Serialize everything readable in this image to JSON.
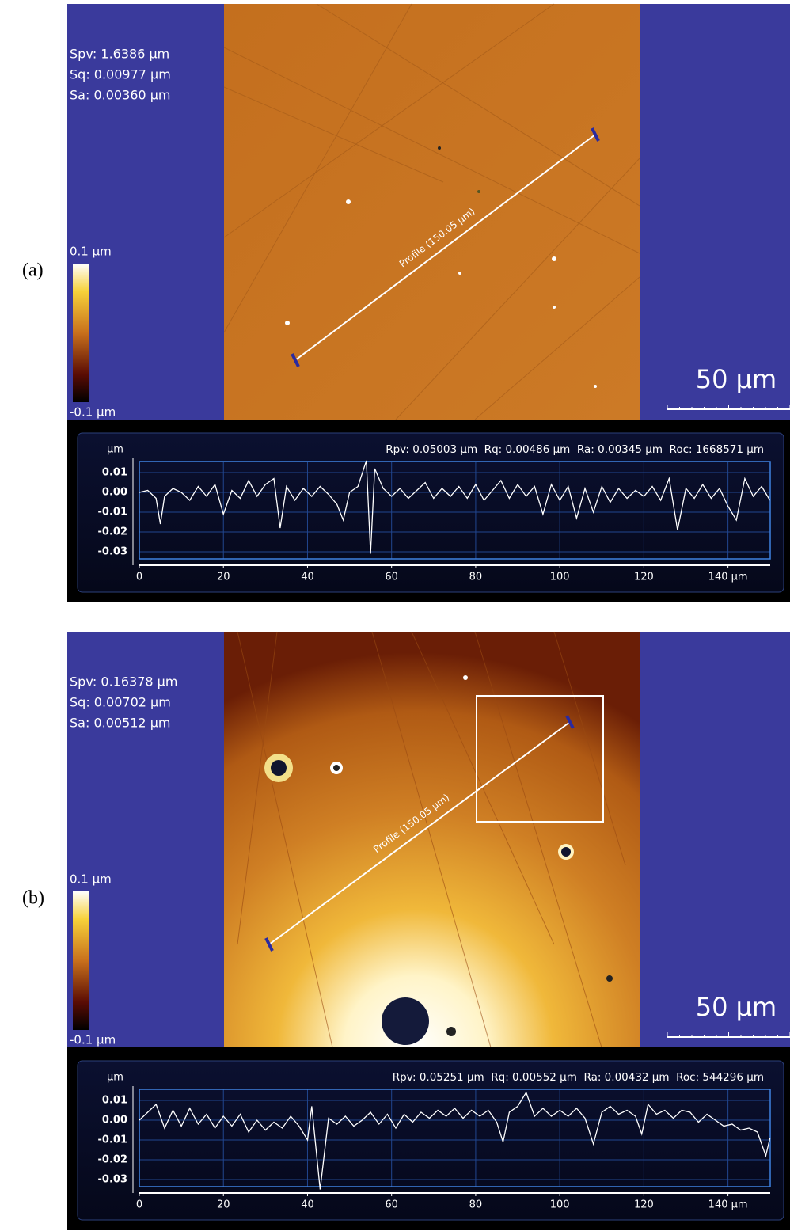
{
  "chart_data": [
    {
      "type": "line",
      "panel_label": "(a)",
      "stats": [
        "Spv: 1.6386 µm",
        "Sq: 0.00977 µm",
        "Sa: 0.00360 µm"
      ],
      "colorbar_max_label": "0.1 µm",
      "colorbar_min_label": "-0.1 µm",
      "scale_bar_label": "50 µm",
      "profile_label": "Profile (150.05 µm)",
      "y_unit": "µm",
      "profile_stats": "Rpv: 0.05003 µm  Rq: 0.00486 µm  Ra: 0.00345 µm  Roc: 1668571 µm",
      "color": "#ffffff",
      "grid": true,
      "xlim": [
        0,
        150.05
      ],
      "ylim": [
        -0.0336,
        0.0156
      ],
      "xticks": [
        0,
        20,
        40,
        60,
        80,
        100,
        120,
        {
          "value": 140,
          "label": "140 µm"
        }
      ],
      "yticks": [
        0.01,
        {
          "value": 0,
          "label": "0.00"
        },
        -0.01,
        -0.02,
        -0.03
      ],
      "x": [
        0,
        2,
        4,
        5,
        6,
        8,
        10,
        12,
        14,
        16,
        18,
        20,
        22,
        24,
        26,
        28,
        30,
        32,
        33.5,
        35,
        37,
        39,
        41,
        43,
        45,
        47,
        48.5,
        50,
        52,
        54,
        55,
        56,
        58,
        60,
        62,
        64,
        66,
        68,
        70,
        72,
        74,
        76,
        78,
        80,
        82,
        84,
        86,
        88,
        90,
        92,
        94,
        96,
        98,
        100,
        102,
        104,
        106,
        108,
        110,
        112,
        114,
        116,
        118,
        120,
        122,
        124,
        126,
        128,
        130,
        132,
        134,
        136,
        138,
        140,
        142,
        144,
        146,
        148,
        150
      ],
      "values": [
        0.0,
        0.001,
        -0.003,
        -0.016,
        -0.002,
        0.002,
        0.0,
        -0.004,
        0.003,
        -0.002,
        0.004,
        -0.011,
        0.001,
        -0.003,
        0.006,
        -0.002,
        0.004,
        0.007,
        -0.018,
        0.003,
        -0.004,
        0.002,
        -0.002,
        0.003,
        -0.001,
        -0.006,
        -0.014,
        0.0,
        0.003,
        0.016,
        -0.031,
        0.012,
        0.002,
        -0.002,
        0.002,
        -0.003,
        0.001,
        0.005,
        -0.003,
        0.002,
        -0.002,
        0.003,
        -0.003,
        0.004,
        -0.004,
        0.001,
        0.006,
        -0.003,
        0.004,
        -0.002,
        0.003,
        -0.011,
        0.004,
        -0.004,
        0.003,
        -0.013,
        0.002,
        -0.01,
        0.003,
        -0.005,
        0.002,
        -0.003,
        0.001,
        -0.002,
        0.003,
        -0.004,
        0.007,
        -0.019,
        0.002,
        -0.003,
        0.004,
        -0.003,
        0.002,
        -0.007,
        -0.014,
        0.007,
        -0.002,
        0.003,
        -0.004
      ]
    },
    {
      "type": "line",
      "panel_label": "(b)",
      "stats": [
        "Spv: 0.16378 µm",
        "Sq: 0.00702 µm",
        "Sa: 0.00512 µm"
      ],
      "colorbar_max_label": "0.1 µm",
      "colorbar_min_label": "-0.1 µm",
      "scale_bar_label": "50 µm",
      "profile_label": "Profile (150.05 µm)",
      "y_unit": "µm",
      "profile_stats": "Rpv: 0.05251 µm  Rq: 0.00552 µm  Ra: 0.00432 µm  Roc: 544296 µm",
      "color": "#ffffff",
      "grid": true,
      "xlim": [
        0,
        150.05
      ],
      "ylim": [
        -0.0336,
        0.0156
      ],
      "xticks": [
        0,
        20,
        40,
        60,
        80,
        100,
        120,
        {
          "value": 140,
          "label": "140 µm"
        }
      ],
      "yticks": [
        0.01,
        {
          "value": 0,
          "label": "0.00"
        },
        -0.01,
        -0.02,
        -0.03
      ],
      "x": [
        0,
        2,
        4,
        6,
        8,
        10,
        12,
        14,
        16,
        18,
        20,
        22,
        24,
        26,
        28,
        30,
        32,
        34,
        36,
        38,
        40,
        41,
        43,
        45,
        47,
        49,
        51,
        53,
        55,
        57,
        59,
        61,
        63,
        65,
        67,
        69,
        71,
        73,
        75,
        77,
        79,
        81,
        83,
        85,
        86.5,
        88,
        90,
        92,
        94,
        96,
        98,
        100,
        102,
        104,
        106,
        108,
        110,
        112,
        114,
        116,
        118,
        119.5,
        121,
        123,
        125,
        127,
        129,
        131,
        133,
        135,
        137,
        139,
        141,
        143,
        145,
        147,
        149,
        150
      ],
      "values": [
        0.0,
        0.004,
        0.008,
        -0.004,
        0.005,
        -0.003,
        0.006,
        -0.002,
        0.003,
        -0.004,
        0.002,
        -0.003,
        0.003,
        -0.006,
        0.0,
        -0.005,
        -0.001,
        -0.004,
        0.002,
        -0.003,
        -0.01,
        0.007,
        -0.035,
        0.001,
        -0.002,
        0.002,
        -0.003,
        0.0,
        0.004,
        -0.002,
        0.003,
        -0.004,
        0.003,
        -0.001,
        0.004,
        0.001,
        0.005,
        0.002,
        0.006,
        0.001,
        0.005,
        0.002,
        0.005,
        -0.001,
        -0.011,
        0.004,
        0.007,
        0.014,
        0.002,
        0.006,
        0.002,
        0.005,
        0.002,
        0.006,
        0.001,
        -0.012,
        0.004,
        0.007,
        0.003,
        0.005,
        0.002,
        -0.007,
        0.008,
        0.003,
        0.005,
        0.001,
        0.005,
        0.004,
        -0.001,
        0.003,
        0.0,
        -0.003,
        -0.002,
        -0.005,
        -0.004,
        -0.006,
        -0.018,
        -0.009
      ]
    }
  ]
}
